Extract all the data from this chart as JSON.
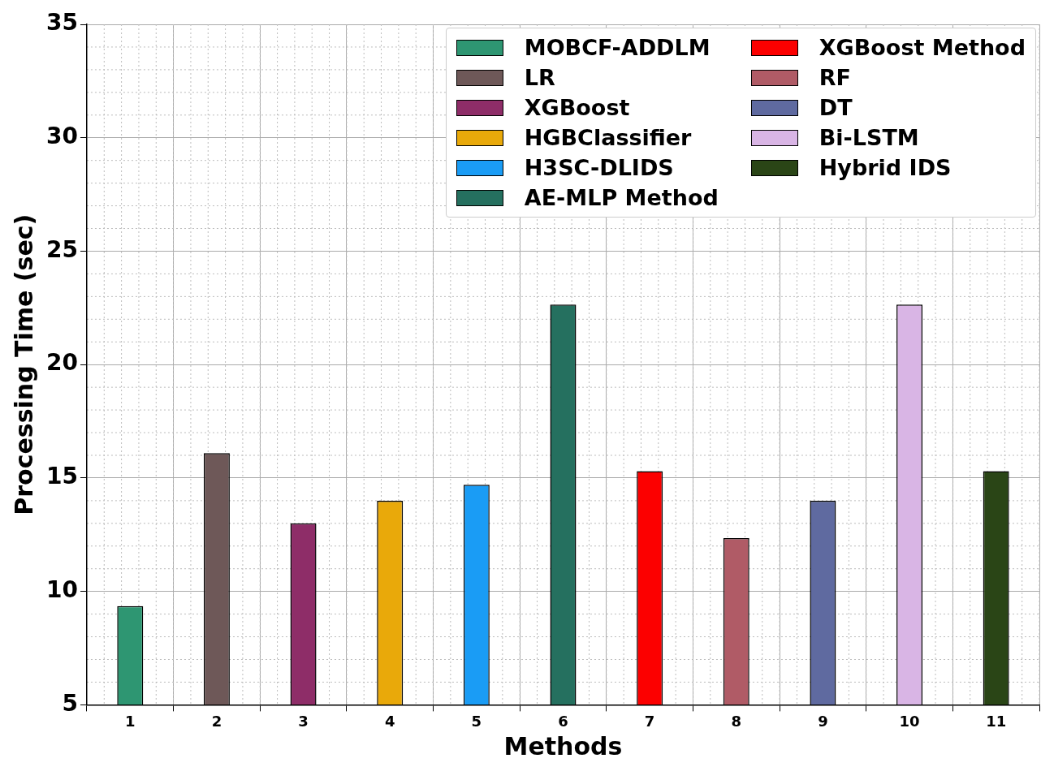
{
  "chart_data": {
    "type": "bar",
    "xlabel": "Methods",
    "ylabel": "Processing Time (sec)",
    "categories": [
      "1",
      "2",
      "3",
      "4",
      "5",
      "6",
      "7",
      "8",
      "9",
      "10",
      "11"
    ],
    "series": [
      {
        "name": "MOBCF-ADDLM",
        "color": "#2e9672",
        "values": [
          9.35,
          null,
          null,
          null,
          null,
          null,
          null,
          null,
          null,
          null,
          null
        ]
      },
      {
        "name": "LR",
        "color": "#6e5858",
        "values": [
          null,
          16.1,
          null,
          null,
          null,
          null,
          null,
          null,
          null,
          null,
          null
        ]
      },
      {
        "name": "XGBoost",
        "color": "#8e2d68",
        "values": [
          null,
          null,
          13.0,
          null,
          null,
          null,
          null,
          null,
          null,
          null,
          null
        ]
      },
      {
        "name": "HGBClassifier",
        "color": "#e9a90a",
        "values": [
          null,
          null,
          null,
          14.0,
          null,
          null,
          null,
          null,
          null,
          null,
          null
        ]
      },
      {
        "name": "H3SC-DLIDS",
        "color": "#1a9cf5",
        "values": [
          null,
          null,
          null,
          null,
          14.7,
          null,
          null,
          null,
          null,
          null,
          null
        ]
      },
      {
        "name": "AE-MLP Method",
        "color": "#25705f",
        "values": [
          null,
          null,
          null,
          null,
          null,
          22.65,
          null,
          null,
          null,
          null,
          null
        ]
      },
      {
        "name": "XGBoost Method",
        "color": "#fc0000",
        "values": [
          null,
          null,
          null,
          null,
          null,
          null,
          15.3,
          null,
          null,
          null,
          null
        ]
      },
      {
        "name": "RF",
        "color": "#b05b66",
        "values": [
          null,
          null,
          null,
          null,
          null,
          null,
          null,
          12.35,
          null,
          null,
          null
        ]
      },
      {
        "name": "DT",
        "color": "#5f6aa0",
        "values": [
          null,
          null,
          null,
          null,
          null,
          null,
          null,
          null,
          14.0,
          null,
          null
        ]
      },
      {
        "name": "Bi-LSTM",
        "color": "#d9b5e5",
        "values": [
          null,
          null,
          null,
          null,
          null,
          null,
          null,
          null,
          null,
          22.65,
          null
        ]
      },
      {
        "name": "Hybrid IDS",
        "color": "#2a4516",
        "values": [
          null,
          null,
          null,
          null,
          null,
          null,
          null,
          null,
          null,
          null,
          15.3
        ]
      }
    ],
    "ylim": [
      5,
      35
    ],
    "yticks": [
      5,
      10,
      15,
      20,
      25,
      30,
      35
    ],
    "grid": true,
    "legend": "top right"
  }
}
